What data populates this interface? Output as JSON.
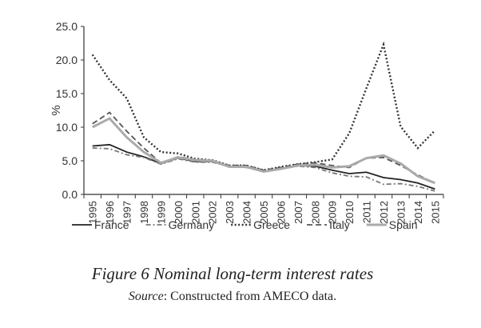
{
  "chart_data": {
    "type": "line",
    "ylabel": "%",
    "ylim": [
      0,
      25
    ],
    "yticks": [
      "0.0",
      "5.0",
      "10.0",
      "15.0",
      "20.0",
      "25.0"
    ],
    "categories": [
      "1995",
      "1996",
      "1997",
      "1998",
      "1999",
      "2000",
      "2001",
      "2002",
      "2003",
      "2004",
      "2005",
      "2006",
      "2007",
      "2008",
      "2009",
      "2010",
      "2011",
      "2012",
      "2013",
      "2014",
      "2015"
    ],
    "series": [
      {
        "name": "France",
        "style": "solid",
        "color": "#222222",
        "values": [
          7.2,
          7.4,
          6.3,
          5.6,
          4.6,
          5.4,
          4.9,
          4.9,
          4.1,
          4.1,
          3.4,
          3.8,
          4.3,
          4.2,
          3.6,
          3.1,
          3.3,
          2.5,
          2.2,
          1.7,
          0.8
        ]
      },
      {
        "name": "Germany",
        "style": "dashdot",
        "color": "#777777",
        "values": [
          6.9,
          6.8,
          5.9,
          5.5,
          4.5,
          5.3,
          4.8,
          4.8,
          4.1,
          4.0,
          3.4,
          3.8,
          4.2,
          4.0,
          3.2,
          2.7,
          2.6,
          1.5,
          1.6,
          1.2,
          0.5
        ]
      },
      {
        "name": "Greece",
        "style": "dotted",
        "color": "#333333",
        "values": [
          20.8,
          17.0,
          14.3,
          8.5,
          6.3,
          6.1,
          5.3,
          5.1,
          4.3,
          4.3,
          3.6,
          4.1,
          4.5,
          4.8,
          5.2,
          9.1,
          15.8,
          22.3,
          10.1,
          6.9,
          9.5
        ]
      },
      {
        "name": "Italy",
        "style": "dashed",
        "color": "#555555",
        "values": [
          10.5,
          12.2,
          9.4,
          6.9,
          4.7,
          5.6,
          5.2,
          5.0,
          4.3,
          4.3,
          3.6,
          4.0,
          4.5,
          4.7,
          4.3,
          4.0,
          5.4,
          5.5,
          4.3,
          2.9,
          1.7
        ]
      },
      {
        "name": "Spain",
        "style": "solid",
        "color": "#aaaaaa",
        "values": [
          10.0,
          11.3,
          8.5,
          6.3,
          4.7,
          5.5,
          5.1,
          5.0,
          4.1,
          4.1,
          3.4,
          3.8,
          4.3,
          4.4,
          4.0,
          4.2,
          5.4,
          5.8,
          4.6,
          2.7,
          1.7
        ]
      }
    ]
  },
  "caption": "Figure 6  Nominal long-term interest rates",
  "source_label": "Source",
  "source_text": ": Constructed from AMECO data."
}
